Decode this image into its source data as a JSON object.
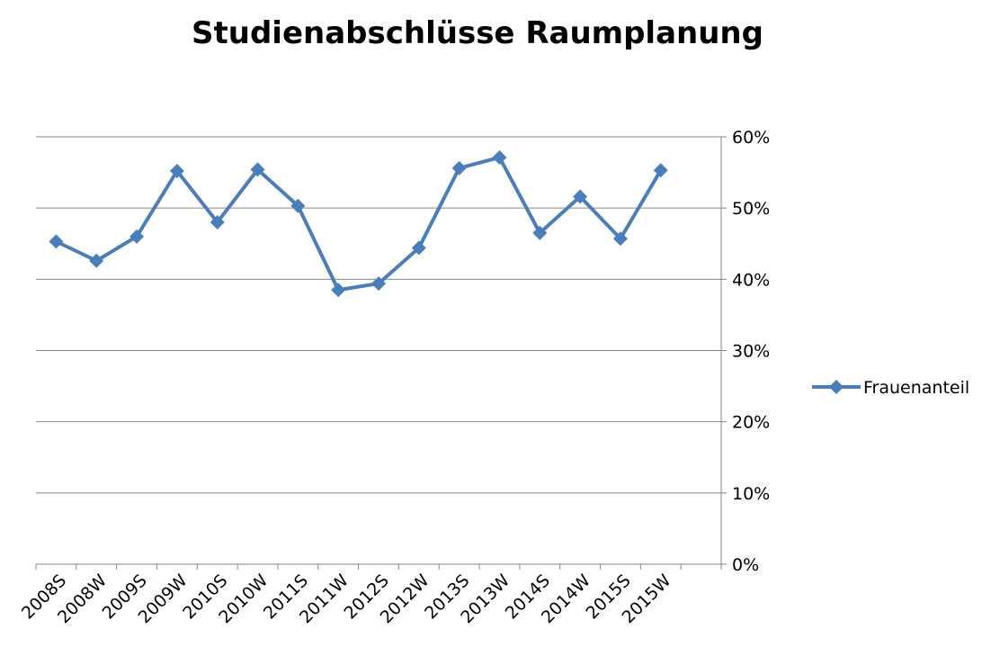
{
  "chart_data": {
    "type": "line",
    "title": "Studienabschlüsse Raumplanung",
    "categories": [
      "2008S",
      "2008W",
      "2009S",
      "2009W",
      "2010S",
      "2010W",
      "2011S",
      "2011W",
      "2012S",
      "2012W",
      "2013S",
      "2013W",
      "2014S",
      "2014W",
      "2015S",
      "2015W",
      null
    ],
    "series": [
      {
        "name": "Frauenanteil",
        "color": "#4a7ebb",
        "values": [
          45.3,
          42.6,
          46.0,
          55.2,
          48.0,
          55.4,
          50.3,
          38.5,
          39.4,
          44.4,
          55.6,
          57.1,
          46.5,
          51.6,
          45.7,
          55.3,
          null
        ]
      }
    ],
    "ylim": [
      0,
      60
    ],
    "yticks": [
      {
        "value": 0,
        "label": "0%"
      },
      {
        "value": 10,
        "label": "10%"
      },
      {
        "value": 20,
        "label": "20%"
      },
      {
        "value": 30,
        "label": "30%"
      },
      {
        "value": 40,
        "label": "40%"
      },
      {
        "value": 50,
        "label": "50%"
      },
      {
        "value": 60,
        "label": "60%"
      }
    ],
    "grid": true,
    "legend": "right"
  }
}
